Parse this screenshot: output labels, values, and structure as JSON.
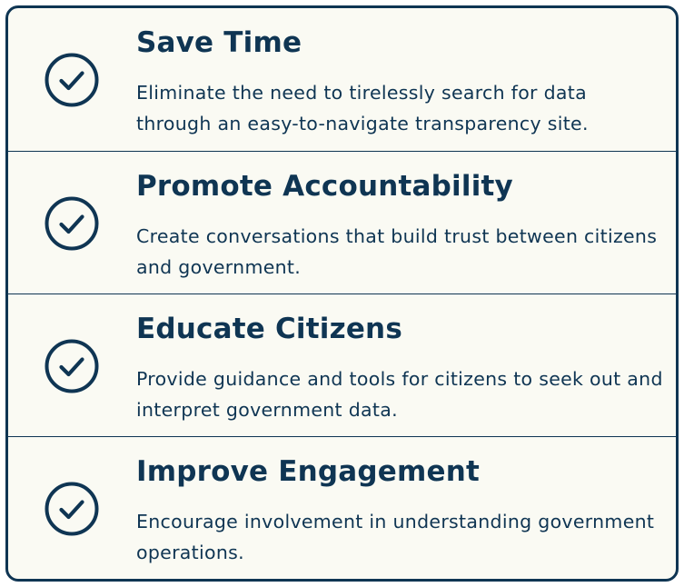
{
  "colors": {
    "primary": "#0f3553",
    "background": "#fafaf3"
  },
  "items": [
    {
      "icon": "check-circle-icon",
      "title": "Save Time",
      "description": "Eliminate the need to tirelessly search for data through an easy-to-navigate transparency site."
    },
    {
      "icon": "check-circle-icon",
      "title": "Promote Accountability",
      "description": "Create conversations that build trust between citizens and government."
    },
    {
      "icon": "check-circle-icon",
      "title": "Educate Citizens",
      "description": "Provide guidance and tools for citizens to seek out and interpret government data."
    },
    {
      "icon": "check-circle-icon",
      "title": "Improve Engagement",
      "description": "Encourage involvement in understanding government operations."
    }
  ]
}
